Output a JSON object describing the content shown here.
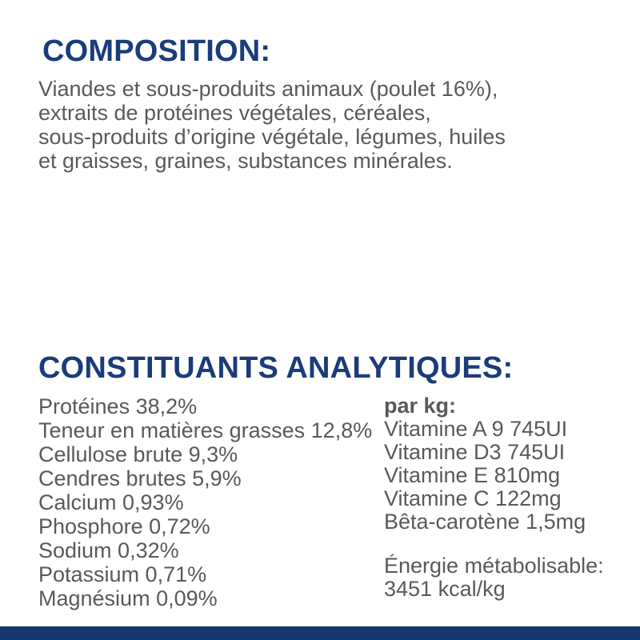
{
  "composition": {
    "heading": "COMPOSITION:",
    "body_lines": [
      "Viandes et sous-produits animaux (poulet 16%),",
      "extraits de protéines végétales, céréales,",
      "sous-produits d’origine végétale, légumes, huiles",
      "et graisses, graines, substances minérales."
    ]
  },
  "analytical": {
    "heading": "CONSTITUANTS ANALYTIQUES:",
    "left_items": [
      "Protéines 38,2%",
      "Teneur en matières grasses 12,8%",
      "Cellulose brute 9,3%",
      "Cendres brutes 5,9%",
      "Calcium 0,93%",
      "Phosphore 0,72%",
      "Sodium 0,32%",
      "Potassium 0,71%",
      "Magnésium 0,09%"
    ],
    "right": {
      "per_kg_label": "par kg:",
      "items": [
        "Vitamine A 9 745UI",
        "Vitamine D3 745UI",
        "Vitamine E 810mg",
        "Vitamine C 122mg",
        "Bêta-carotène 1,5mg"
      ],
      "energy_label": "Énergie métabolisable:",
      "energy_value": "3451 kcal/kg"
    }
  },
  "colors": {
    "heading_color": "#1b3c7a",
    "body_color": "#58595b",
    "footer_color": "#17386e",
    "bg_color": "#ffffff"
  }
}
